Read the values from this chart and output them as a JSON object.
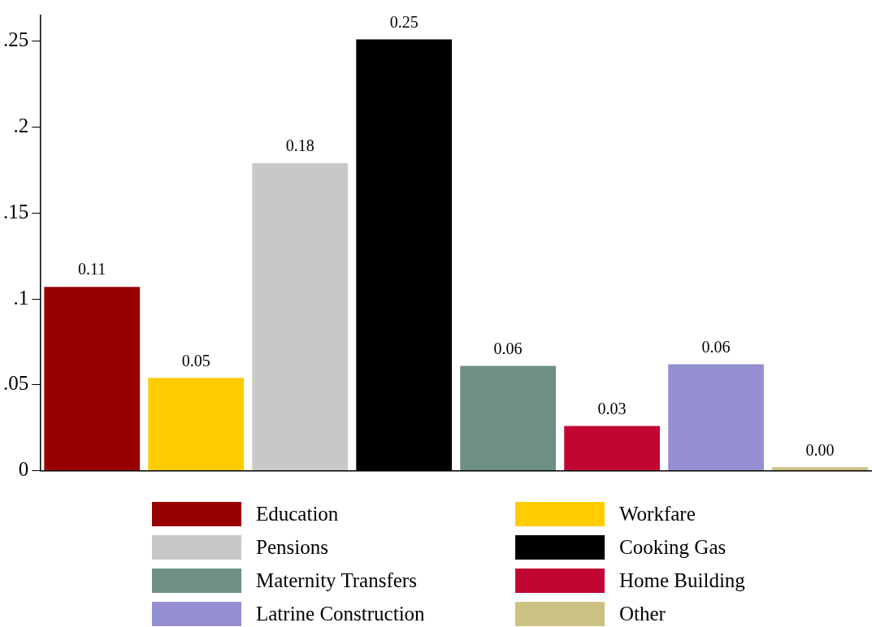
{
  "chart_data": {
    "type": "bar",
    "categories": [
      null,
      null,
      null,
      null,
      null,
      null,
      null,
      null
    ],
    "series": [
      {
        "name": "Education",
        "color": "#990000",
        "values": [
          0.107,
          null,
          null,
          null,
          null,
          null,
          null,
          null
        ],
        "value_labels": [
          "0.11",
          null,
          null,
          null,
          null,
          null,
          null,
          null
        ]
      },
      {
        "name": "Workfare",
        "color": "#ffcc00",
        "values": [
          null,
          0.054,
          null,
          null,
          null,
          null,
          null,
          null
        ],
        "value_labels": [
          null,
          "0.05",
          null,
          null,
          null,
          null,
          null,
          null
        ]
      },
      {
        "name": "Pensions",
        "color": "#c8c8c8",
        "values": [
          null,
          null,
          0.179,
          null,
          null,
          null,
          null,
          null
        ],
        "value_labels": [
          null,
          null,
          "0.18",
          null,
          null,
          null,
          null,
          null
        ]
      },
      {
        "name": "Cooking Gas",
        "color": "#000000",
        "values": [
          null,
          null,
          null,
          0.251,
          null,
          null,
          null,
          null
        ],
        "value_labels": [
          null,
          null,
          null,
          "0.25",
          null,
          null,
          null,
          null
        ]
      },
      {
        "name": "Maternity Transfers",
        "color": "#6e8f83",
        "values": [
          null,
          null,
          null,
          null,
          0.061,
          null,
          null,
          null
        ],
        "value_labels": [
          null,
          null,
          null,
          null,
          "0.06",
          null,
          null,
          null
        ]
      },
      {
        "name": "Home Building",
        "color": "#c20633",
        "values": [
          null,
          null,
          null,
          null,
          null,
          0.026,
          null,
          null
        ],
        "value_labels": [
          null,
          null,
          null,
          null,
          null,
          "0.03",
          null,
          null
        ]
      },
      {
        "name": "Latrine Construction",
        "color": "#948fd1",
        "values": [
          null,
          null,
          null,
          null,
          null,
          null,
          0.062,
          null
        ],
        "value_labels": [
          null,
          null,
          null,
          null,
          null,
          null,
          "0.06",
          null
        ]
      },
      {
        "name": "Other",
        "color": "#cbc182",
        "values": [
          null,
          null,
          null,
          null,
          null,
          null,
          null,
          0.002
        ],
        "value_labels": [
          null,
          null,
          null,
          null,
          null,
          null,
          null,
          "0.00"
        ]
      }
    ],
    "ylim": [
      0,
      0.265
    ],
    "yticks": [
      0,
      {
        "value": 0.05,
        "label": ".05"
      },
      {
        "value": 0.1,
        "label": ".1"
      },
      {
        "value": 0.15,
        "label": ".15"
      },
      {
        "value": 0.2,
        "label": ".2"
      },
      {
        "value": 0.25,
        "label": ".25"
      }
    ],
    "grid": false,
    "legend": "bottom"
  }
}
